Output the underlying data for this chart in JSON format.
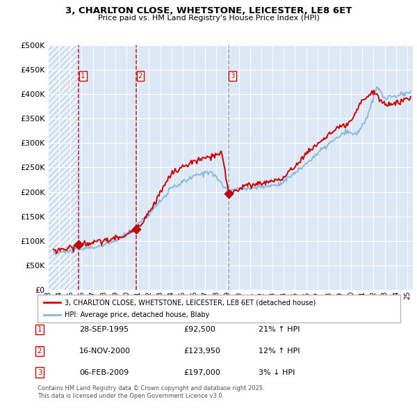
{
  "title_line1": "3, CHARLTON CLOSE, WHETSTONE, LEICESTER, LE8 6ET",
  "title_line2": "Price paid vs. HM Land Registry's House Price Index (HPI)",
  "legend_red": "3, CHARLTON CLOSE, WHETSTONE, LEICESTER, LE8 6ET (detached house)",
  "legend_blue": "HPI: Average price, detached house, Blaby",
  "transactions": [
    {
      "num": 1,
      "date": "28-SEP-1995",
      "price": 92500,
      "pct": "21%",
      "dir": "↑",
      "year": 1995.75
    },
    {
      "num": 2,
      "date": "16-NOV-2000",
      "price": 123950,
      "pct": "12%",
      "dir": "↑",
      "year": 2000.88
    },
    {
      "num": 3,
      "date": "06-FEB-2009",
      "price": 197000,
      "pct": "3%",
      "dir": "↓",
      "year": 2009.1
    }
  ],
  "footnote_line1": "Contains HM Land Registry data © Crown copyright and database right 2025.",
  "footnote_line2": "This data is licensed under the Open Government Licence v3.0.",
  "bg_color": "#dce8f5",
  "hatch_color": "#b8cce0",
  "red_color": "#cc0000",
  "blue_color": "#88b4d8",
  "ylim": [
    0,
    500000
  ],
  "xlim_start": 1993.0,
  "xlim_end": 2025.5,
  "hatch_end": 1995.75,
  "xtick_years": [
    1993,
    1994,
    1995,
    1996,
    1997,
    1998,
    1999,
    2000,
    2001,
    2002,
    2003,
    2004,
    2005,
    2006,
    2007,
    2008,
    2009,
    2010,
    2011,
    2012,
    2013,
    2014,
    2015,
    2016,
    2017,
    2018,
    2019,
    2020,
    2021,
    2022,
    2023,
    2024,
    2025
  ]
}
